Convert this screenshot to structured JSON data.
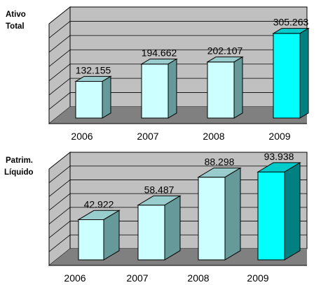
{
  "colors": {
    "wall": "#c0c0c0",
    "floor": "#808080",
    "gridline": "#000000",
    "bar_front": "#ccffff",
    "bar_top": "#99cccc",
    "bar_side": "#669999",
    "highlight_front": "#00ffff",
    "highlight_top": "#00cccc",
    "highlight_side": "#008080"
  },
  "chart_data": [
    {
      "type": "bar",
      "title_lines": [
        "Ativo",
        "Total"
      ],
      "categories": [
        "2006",
        "2007",
        "2008",
        "2009"
      ],
      "values": [
        132155,
        194662,
        202107,
        305263
      ],
      "value_labels": [
        "132.155",
        "194.662",
        "202.107",
        "305.263"
      ],
      "highlight_index": 3,
      "ylim": [
        0,
        350000
      ],
      "grid": true,
      "style": "3d-column"
    },
    {
      "type": "bar",
      "title_lines": [
        "Patrim.",
        "Líquido"
      ],
      "categories": [
        "2006",
        "2007",
        "2008",
        "2009"
      ],
      "values": [
        42922,
        58487,
        88298,
        93938
      ],
      "value_labels": [
        "42.922",
        "58.487",
        "88.298",
        "93.938"
      ],
      "highlight_index": 3,
      "ylim": [
        0,
        100000
      ],
      "grid": true,
      "style": "3d-column"
    }
  ]
}
